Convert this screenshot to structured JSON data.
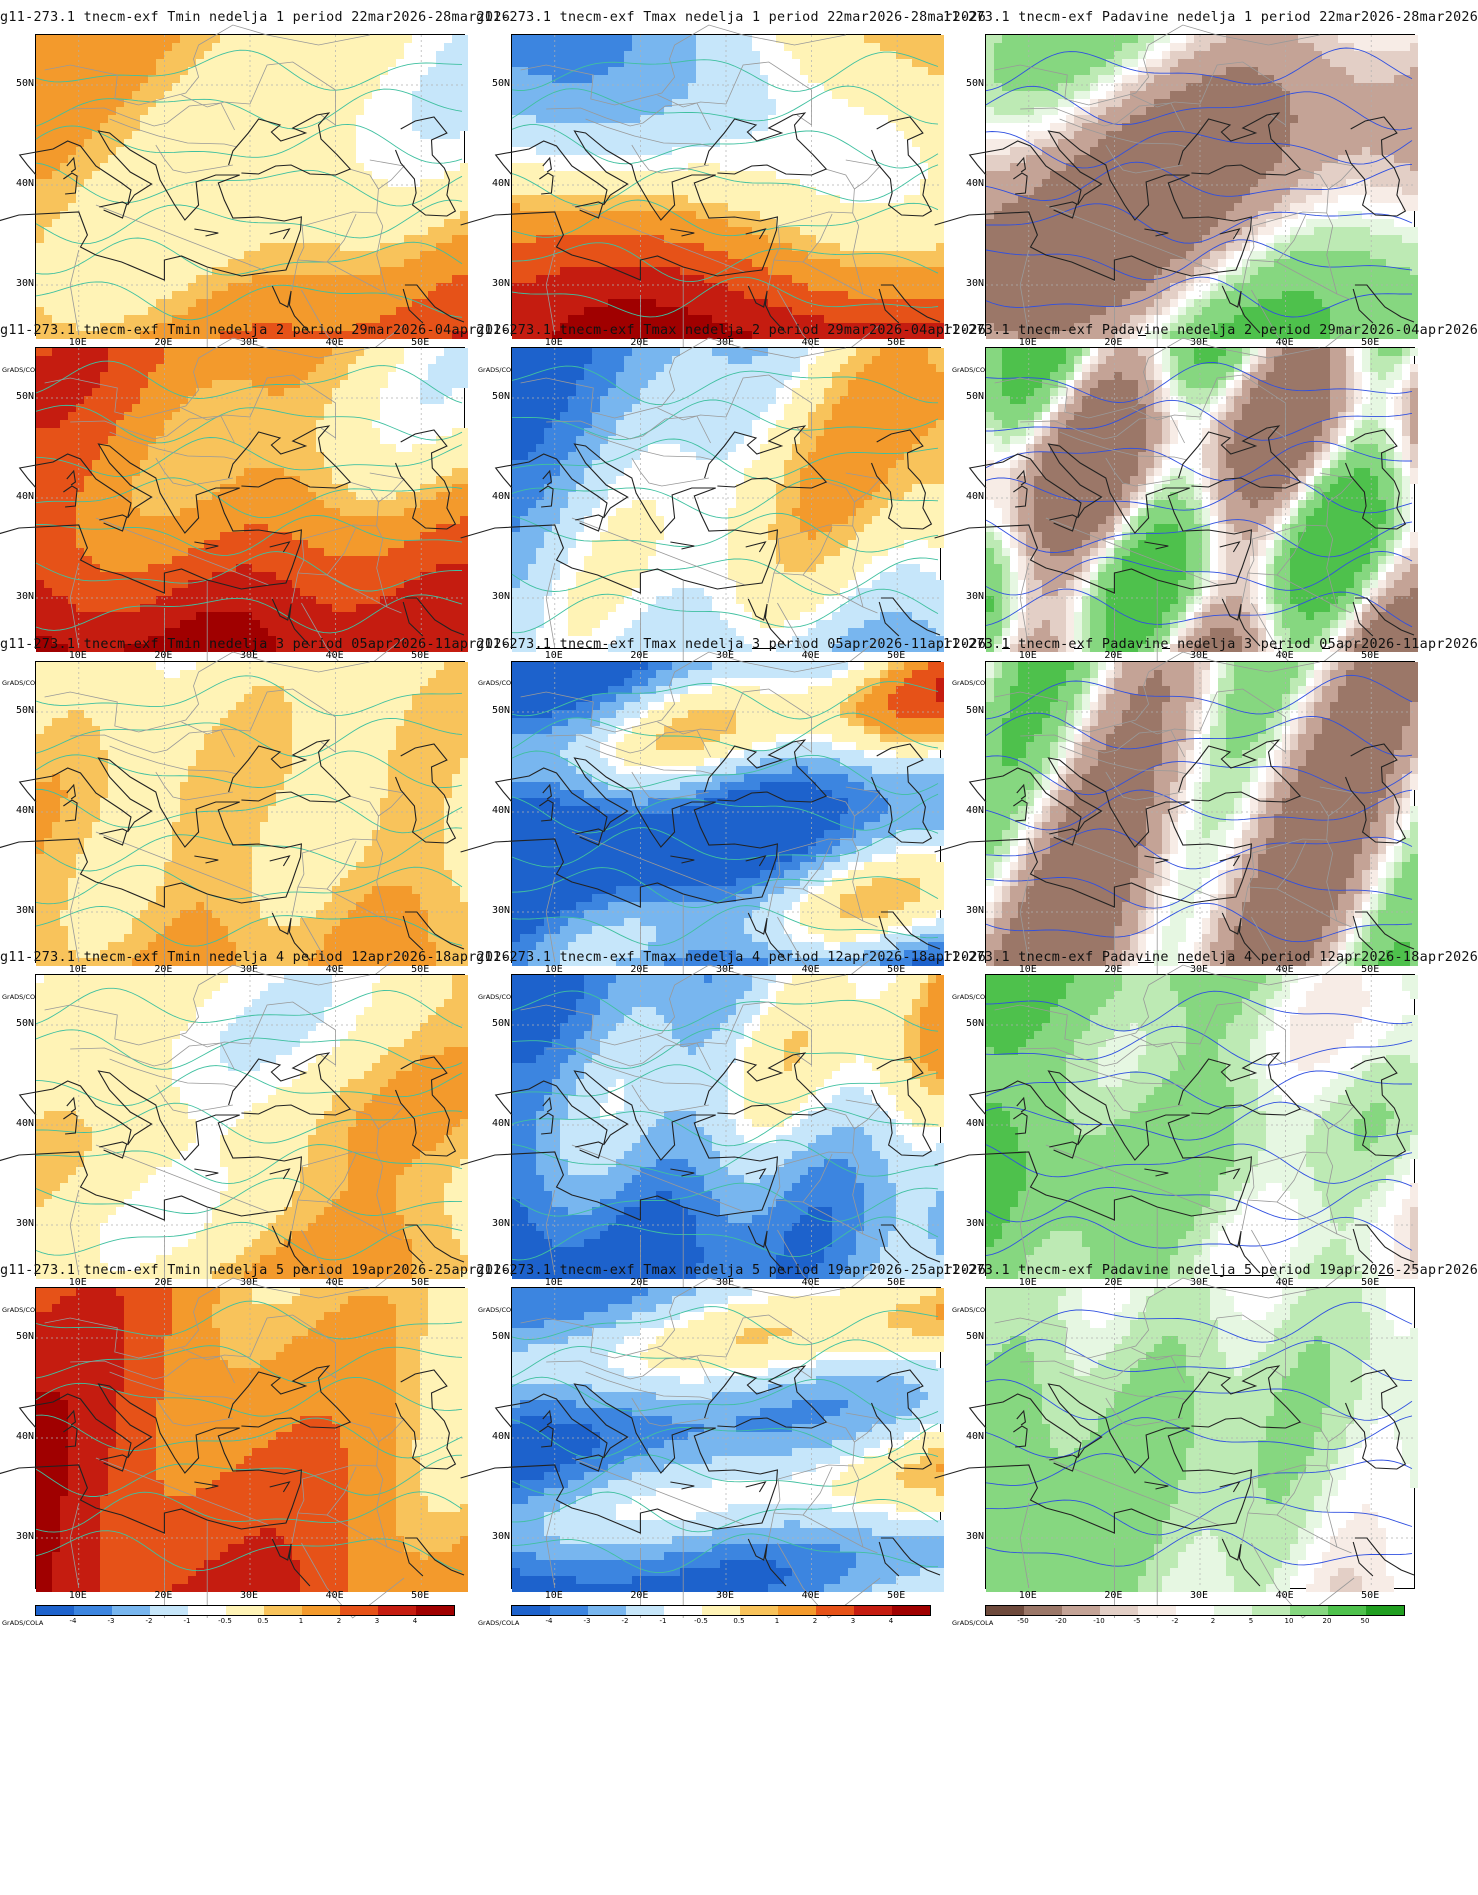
{
  "credit": "GrADS/COLA",
  "lat_labels": [
    "50N",
    "40N",
    "30N"
  ],
  "lon_labels": [
    "10E",
    "20E",
    "30E",
    "40E",
    "50E"
  ],
  "colors": {
    "tmin_tmax": [
      "#1d62cc",
      "#3c85e0",
      "#78b6ef",
      "#c6e6fa",
      "#ffffff",
      "#fff3b6",
      "#f8c35b",
      "#f39a2c",
      "#e65218",
      "#c51c10",
      "#a00000"
    ],
    "padavine": [
      "#6e4a3c",
      "#9b7768",
      "#c4a396",
      "#e3cfc6",
      "#f7ece6",
      "#ffffff",
      "#e6f7e2",
      "#bdeab4",
      "#86d780",
      "#4ec14c",
      "#209e20"
    ],
    "contour_temp": "#40c0a0",
    "contour_precip": "#3050e0",
    "coast": "#222222",
    "border": "#999999"
  },
  "legends": {
    "tmin": [
      "-4",
      "-3",
      "-2",
      "-1",
      "-0.5",
      "0.5",
      "1",
      "2",
      "3",
      "4"
    ],
    "tmax": [
      "-4",
      "-3",
      "-2",
      "-1",
      "-0.5",
      "0.5",
      "1",
      "2",
      "3",
      "4"
    ],
    "padavine": [
      "-50",
      "-20",
      "-10",
      "-5",
      "-2",
      "2",
      "5",
      "10",
      "20",
      "50"
    ]
  },
  "panels": [
    {
      "title": "g11-273.1 tnecm-exf Tmin nedelja 1 period 22mar2026-28mar2026",
      "var": "tmin",
      "pattern": [
        0.2,
        1.6,
        0.4,
        1.6,
        1.7,
        0.6
      ]
    },
    {
      "title": "g11-273.1 tnecm-exf Tmax nedelja 1 period 22mar2026-28mar2026",
      "var": "tmax",
      "pattern": [
        -1.5,
        3.5,
        -0.5,
        -2.3,
        1.1,
        -0.6
      ]
    },
    {
      "title": "11-273.1 tnecm-exf Padavine nedelja 1 period 22mar2026-28mar2026",
      "var": "padavine",
      "pattern": [
        -3,
        0.5,
        3,
        6,
        1.3,
        0.7
      ]
    },
    {
      "title": "g11-273.1 tnecm-exf Tmin nedelja 2 period 29mar2026-04apr2026",
      "var": "tmin",
      "pattern": [
        1.8,
        2.2,
        0.6,
        1.4,
        1.9,
        0.8
      ]
    },
    {
      "title": "g11-273.1 tnecm-exf Tmax nedelja 2 period 29mar2026-04apr2026",
      "var": "tmax",
      "pattern": [
        -2.2,
        -1.2,
        -0.8,
        -2.4,
        2.1,
        0.5
      ]
    },
    {
      "title": "11-273.1 tnecm-exf Padavine nedelja 2 period 29mar2026-04apr2026",
      "var": "padavine",
      "pattern": [
        -1.5,
        0,
        6,
        5,
        2.4,
        1.1
      ]
    },
    {
      "title": "g11-273.1 tnecm-exf Tmin nedelja 3 period 05apr2026-11apr2026",
      "var": "tmin",
      "pattern": [
        0,
        1.0,
        0.5,
        -0.3,
        2.3,
        1.2
      ]
    },
    {
      "title": "g11-273.1 tnecm-exf Tmax nedelja 3 period 05apr2026-11apr2026",
      "var": "tmax",
      "pattern": [
        -3.2,
        -2.4,
        -1.2,
        -3.0,
        1.7,
        1.5
      ]
    },
    {
      "title": "11-273.1 tnecm-exf Padavine nedelja 3 period 05apr2026-11apr2026",
      "var": "padavine",
      "pattern": [
        -2.5,
        0.5,
        6,
        4,
        1.9,
        0.4
      ]
    },
    {
      "title": "g11-273.1 tnecm-exf Tmin nedelja 4 period 12apr2026-18apr2026",
      "var": "tmin",
      "pattern": [
        -0.8,
        1.0,
        1.0,
        0.3,
        1.2,
        1.7
      ]
    },
    {
      "title": "g11-273.1 tnecm-exf Tmax nedelja 4 period 12apr2026-18apr2026",
      "var": "tmax",
      "pattern": [
        -3.0,
        -1.5,
        -1.0,
        -1.6,
        2.6,
        0.9
      ]
    },
    {
      "title": "11-273.1 tnecm-exf Padavine nedelja 4 period 12apr2026-18apr2026",
      "var": "padavine",
      "pattern": [
        4,
        0,
        1.5,
        1,
        2.2,
        1.4
      ]
    },
    {
      "title": "g11-273.1 tnecm-exf Tmin nedelja 5 period 19apr2026-25apr2026",
      "var": "tmin",
      "pattern": [
        2.0,
        2.4,
        1.0,
        0.8,
        1.5,
        0.3
      ]
    },
    {
      "title": "g11-273.1 tnecm-exf Tmax nedelja 5 period 19apr2026-25apr2026",
      "var": "tmax",
      "pattern": [
        -2.4,
        -1.4,
        -0.6,
        -1.8,
        1.4,
        1.9
      ]
    },
    {
      "title": "11-273.1 tnecm-exf Padavine nedelja 5 period 19apr2026-25apr2026",
      "var": "padavine",
      "pattern": [
        2.5,
        0,
        1,
        -1.5,
        2.8,
        0.6
      ]
    }
  ]
}
